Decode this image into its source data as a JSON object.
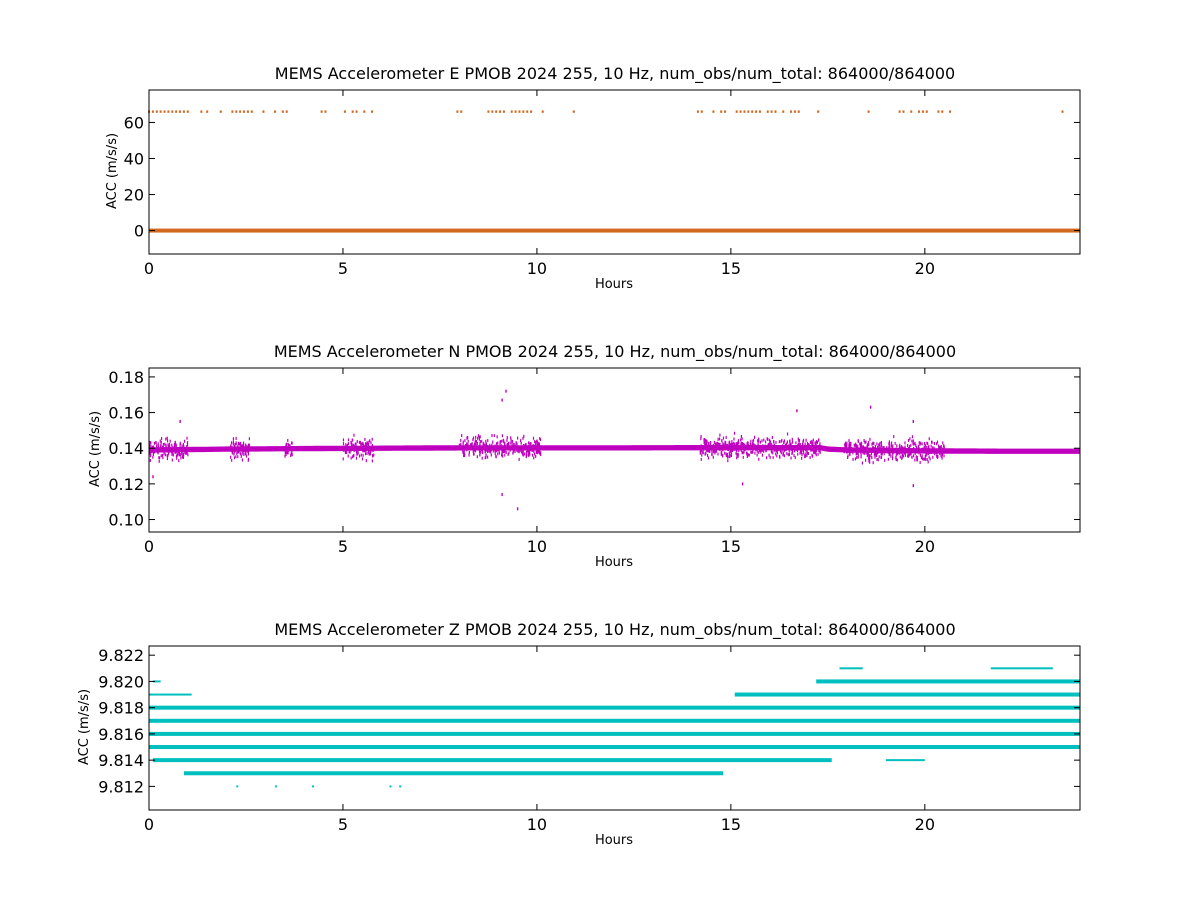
{
  "chart_data": [
    {
      "type": "scatter",
      "title": "MEMS Accelerometer E PMOB 2024 255, 10 Hz, num_obs/num_total: 864000/864000",
      "xlabel": "Hours",
      "ylabel": "ACC (m/s/s)",
      "xlim": [
        0,
        24
      ],
      "ylim": [
        -13,
        78
      ],
      "xticks": [
        0,
        5,
        10,
        15,
        20
      ],
      "yticks": [
        0,
        20,
        40,
        60
      ],
      "color": "#d2691e",
      "baseline": {
        "y": 0.0,
        "x_range": [
          0,
          24
        ]
      },
      "series": [
        {
          "label_positions_hours": [
            0.0,
            0.1,
            0.2,
            0.3,
            0.4,
            0.5,
            0.6,
            0.7,
            0.8,
            0.9,
            1.0,
            1.35,
            1.5,
            1.85,
            2.15,
            2.25,
            2.35,
            2.45,
            2.55,
            2.65,
            2.95,
            3.25,
            3.45,
            3.55,
            4.45,
            4.55,
            5.05,
            5.25,
            5.35,
            5.55,
            5.75,
            7.95,
            8.05,
            8.75,
            8.85,
            8.95,
            9.05,
            9.15,
            9.35,
            9.45,
            9.55,
            9.65,
            9.75,
            9.85,
            10.15,
            10.95,
            14.15,
            14.25,
            14.55,
            14.75,
            14.85,
            15.15,
            15.25,
            15.35,
            15.45,
            15.55,
            15.65,
            15.75,
            15.95,
            16.05,
            16.15,
            16.35,
            16.55,
            16.65,
            16.75,
            17.25,
            18.55,
            19.35,
            19.45,
            19.65,
            19.85,
            19.95,
            20.05,
            20.35,
            20.45,
            20.65,
            23.55
          ],
          "y": 66
        }
      ]
    },
    {
      "type": "scatter",
      "title": "MEMS Accelerometer N PMOB 2024 255, 10 Hz, num_obs/num_total: 864000/864000",
      "xlabel": "Hours",
      "ylabel": "ACC (m/s/s)",
      "xlim": [
        0,
        24
      ],
      "ylim": [
        0.093,
        0.185
      ],
      "xticks": [
        0,
        5,
        10,
        15,
        20
      ],
      "yticks": [
        0.1,
        0.12,
        0.14,
        0.16,
        0.18
      ],
      "ytick_labels": [
        "0.10",
        "0.12",
        "0.14",
        "0.16",
        "0.18"
      ],
      "color": "#bf00bf",
      "band": {
        "x": [
          0,
          2,
          4,
          6,
          8,
          10,
          12,
          14,
          16,
          17.3,
          17.5,
          18,
          20,
          22,
          24
        ],
        "center": [
          0.139,
          0.1395,
          0.1398,
          0.14,
          0.1402,
          0.1402,
          0.1402,
          0.1403,
          0.1403,
          0.1403,
          0.1395,
          0.139,
          0.1385,
          0.1383,
          0.1383
        ],
        "half_width": 0.0015
      },
      "spread_periods_hours": [
        [
          0,
          1.0
        ],
        [
          2.1,
          2.6
        ],
        [
          3.5,
          3.7
        ],
        [
          5.0,
          5.8
        ],
        [
          8.0,
          10.1
        ],
        [
          14.2,
          17.3
        ],
        [
          17.9,
          20.5
        ]
      ],
      "extreme_points": [
        {
          "x": 9.2,
          "y": 0.172
        },
        {
          "x": 9.1,
          "y": 0.167
        },
        {
          "x": 16.7,
          "y": 0.161
        },
        {
          "x": 18.6,
          "y": 0.163
        },
        {
          "x": 19.7,
          "y": 0.155
        },
        {
          "x": 0.8,
          "y": 0.155
        },
        {
          "x": 9.1,
          "y": 0.114
        },
        {
          "x": 9.5,
          "y": 0.106
        },
        {
          "x": 15.3,
          "y": 0.12
        },
        {
          "x": 19.7,
          "y": 0.119
        },
        {
          "x": 0.1,
          "y": 0.124
        }
      ]
    },
    {
      "type": "scatter",
      "title": "MEMS Accelerometer Z PMOB 2024 255, 10 Hz, num_obs/num_total: 864000/864000",
      "xlabel": "Hours",
      "ylabel": "ACC (m/s/s)",
      "xlim": [
        0,
        24
      ],
      "ylim": [
        9.8102,
        9.8227
      ],
      "xticks": [
        0,
        5,
        10,
        15,
        20
      ],
      "yticks": [
        9.812,
        9.814,
        9.816,
        9.818,
        9.82,
        9.822
      ],
      "ytick_labels": [
        "9.812",
        "9.814",
        "9.816",
        "9.818",
        "9.820",
        "9.822"
      ],
      "color": "#00bfbf",
      "levels": [
        {
          "y": 9.821,
          "segments": [
            [
              17.8,
              18.4
            ],
            [
              21.7,
              23.3
            ]
          ]
        },
        {
          "y": 9.82,
          "segments": [
            [
              0.1,
              0.3
            ],
            [
              17.2,
              24
            ]
          ]
        },
        {
          "y": 9.819,
          "segments": [
            [
              0.0,
              1.1
            ],
            [
              15.1,
              24
            ]
          ]
        },
        {
          "y": 9.818,
          "segments": [
            [
              0.0,
              24
            ]
          ]
        },
        {
          "y": 9.817,
          "segments": [
            [
              0.0,
              24
            ]
          ]
        },
        {
          "y": 9.816,
          "segments": [
            [
              0.0,
              24
            ]
          ]
        },
        {
          "y": 9.815,
          "segments": [
            [
              0.0,
              24
            ]
          ]
        },
        {
          "y": 9.814,
          "segments": [
            [
              0.1,
              17.6
            ],
            [
              19.0,
              20.0
            ]
          ]
        },
        {
          "y": 9.813,
          "segments": [
            [
              0.9,
              14.8
            ]
          ]
        },
        {
          "y": 9.812,
          "segments": [
            [
              2.25,
              2.3
            ],
            [
              3.25,
              3.3
            ],
            [
              4.2,
              4.25
            ],
            [
              6.2,
              6.25
            ],
            [
              6.45,
              6.5
            ]
          ]
        }
      ]
    }
  ]
}
